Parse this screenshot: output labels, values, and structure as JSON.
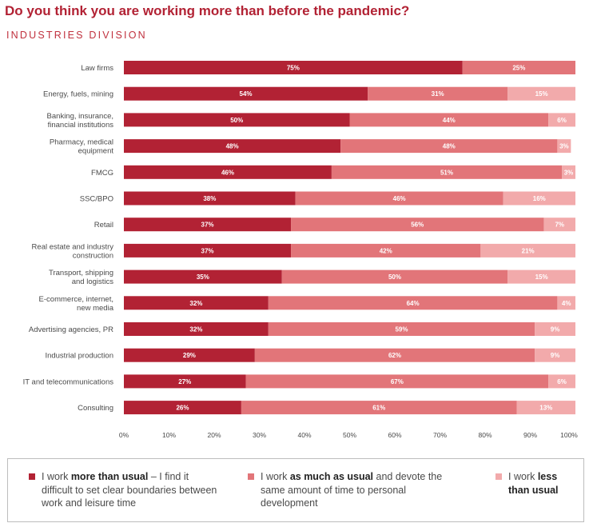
{
  "title": "Do you think you are working more than before the pandemic?",
  "subtitle": "INDUSTRIES DIVISION",
  "colors": {
    "more": "#b22234",
    "same": "#e27579",
    "less": "#f2aaab"
  },
  "legend": [
    {
      "pre": "I work ",
      "bold": "more than usual",
      "post": " – I find it difficult to set clear boundaries between work and leisure time",
      "color": "#b22234"
    },
    {
      "pre": "I work ",
      "bold": "as much as usual",
      "post": " and devote the same amount of time to personal development",
      "color": "#e27579"
    },
    {
      "pre": "I work ",
      "bold": "less than usual",
      "post": "",
      "color": "#f2aaab"
    }
  ],
  "chart_data": {
    "type": "bar",
    "orientation": "horizontal",
    "stacked": true,
    "title": "Do you think you are working more than before the pandemic?",
    "subtitle": "INDUSTRIES DIVISION",
    "categories": [
      [
        "Law firms"
      ],
      [
        "Energy, fuels, mining"
      ],
      [
        "Banking, insurance,",
        "financial institutions"
      ],
      [
        "Pharmacy, medical",
        "equipment"
      ],
      [
        "FMCG"
      ],
      [
        "SSC/BPO"
      ],
      [
        "Retail"
      ],
      [
        "Real estate and industry",
        "construction"
      ],
      [
        "Transport, shipping",
        "and logistics"
      ],
      [
        "E-commerce, internet,",
        "new media"
      ],
      [
        "Advertising agencies, PR"
      ],
      [
        "Industrial production"
      ],
      [
        "IT and telecommunications"
      ],
      [
        "Consulting"
      ]
    ],
    "series": [
      {
        "name": "I work more than usual",
        "color": "#b22234",
        "values": [
          75,
          54,
          50,
          48,
          46,
          38,
          37,
          37,
          35,
          32,
          32,
          29,
          27,
          26
        ]
      },
      {
        "name": "I work as much as usual",
        "color": "#e27579",
        "values": [
          25,
          31,
          44,
          48,
          51,
          46,
          56,
          42,
          50,
          64,
          59,
          62,
          67,
          61
        ]
      },
      {
        "name": "I work less than usual",
        "color": "#f2aaab",
        "values": [
          0,
          15,
          6,
          3,
          3,
          16,
          7,
          21,
          15,
          4,
          9,
          9,
          6,
          13
        ]
      }
    ],
    "value_suffix": "%",
    "xlim": [
      0,
      100
    ],
    "xticks": [
      "0%",
      "10%",
      "20%",
      "30%",
      "40%",
      "50%",
      "60%",
      "70%",
      "80%",
      "90%",
      "100%"
    ],
    "legend_position": "bottom"
  }
}
